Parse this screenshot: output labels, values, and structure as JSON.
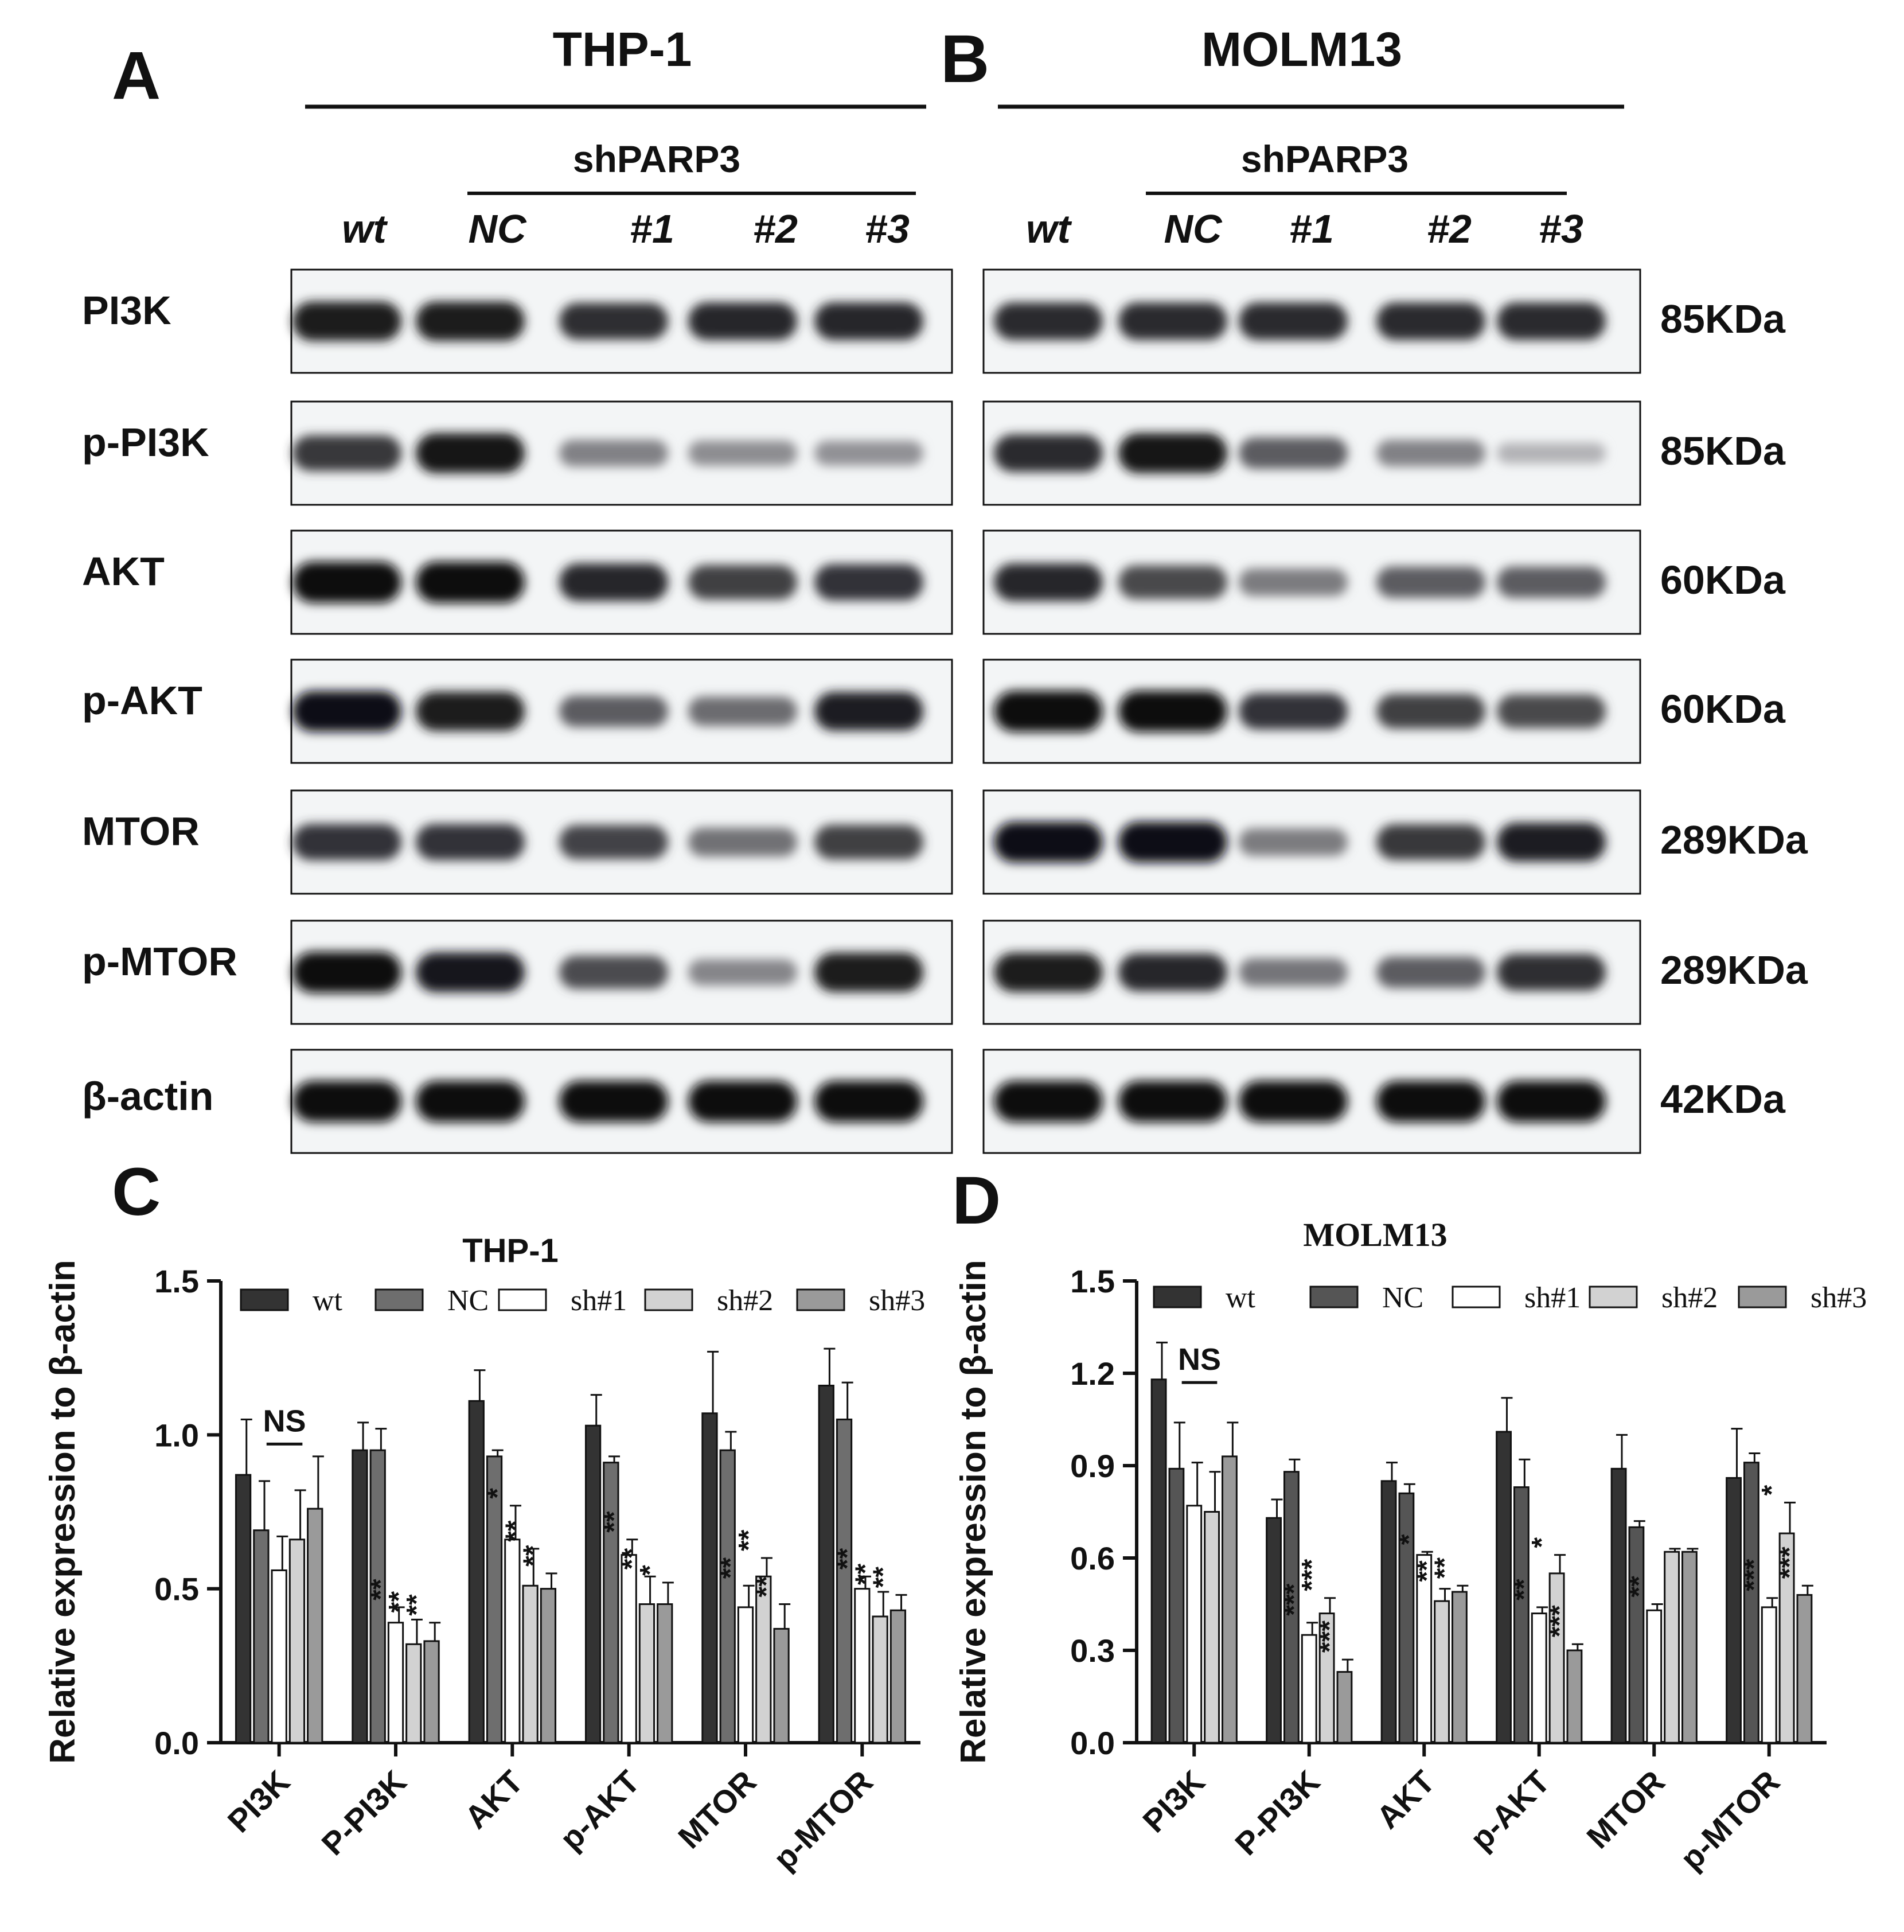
{
  "panels": {
    "A": {
      "letter": "A",
      "cell_line": "THP-1",
      "group_label": "shPARP3",
      "lanes": [
        "wt",
        "NC",
        "#1",
        "#2",
        "#3"
      ],
      "blots": [
        {
          "protein": "PI3K",
          "intensity": [
            0.92,
            0.92,
            0.82,
            0.86,
            0.86
          ]
        },
        {
          "protein": "p-PI3K",
          "intensity": [
            0.78,
            0.95,
            0.42,
            0.36,
            0.34
          ]
        },
        {
          "protein": "AKT",
          "intensity": [
            1.0,
            1.0,
            0.86,
            0.74,
            0.8
          ]
        },
        {
          "protein": "p-AKT",
          "intensity": [
            0.98,
            0.92,
            0.6,
            0.52,
            0.9
          ]
        },
        {
          "protein": "MTOR",
          "intensity": [
            0.8,
            0.8,
            0.72,
            0.5,
            0.74
          ]
        },
        {
          "protein": "p-MTOR",
          "intensity": [
            1.0,
            0.94,
            0.68,
            0.4,
            0.92
          ]
        },
        {
          "protein": "β-actin",
          "intensity": [
            1.0,
            1.0,
            1.0,
            1.0,
            1.0
          ]
        }
      ]
    },
    "B": {
      "letter": "B",
      "cell_line": "MOLM13",
      "group_label": "shPARP3",
      "lanes": [
        "wt",
        "NC",
        "#1",
        "#2",
        "#3"
      ],
      "blots": [
        {
          "protein": "PI3K",
          "size": "85KDa",
          "intensity": [
            0.85,
            0.85,
            0.85,
            0.85,
            0.85
          ]
        },
        {
          "protein": "p-PI3K",
          "size": "85KDa",
          "intensity": [
            0.85,
            0.95,
            0.6,
            0.42,
            0.18
          ]
        },
        {
          "protein": "AKT",
          "size": "60KDa",
          "intensity": [
            0.86,
            0.7,
            0.45,
            0.6,
            0.6
          ]
        },
        {
          "protein": "p-AKT",
          "size": "60KDa",
          "intensity": [
            1.0,
            1.0,
            0.8,
            0.74,
            0.7
          ]
        },
        {
          "protein": "MTOR",
          "size": "289KDa",
          "intensity": [
            0.98,
            0.98,
            0.45,
            0.78,
            0.9
          ]
        },
        {
          "protein": "p-MTOR",
          "size": "289KDa",
          "intensity": [
            0.92,
            0.86,
            0.48,
            0.6,
            0.82
          ]
        },
        {
          "protein": "β-actin",
          "size": "42KDa",
          "intensity": [
            1.0,
            1.0,
            1.0,
            1.0,
            1.0
          ]
        }
      ]
    }
  },
  "chart_data": [
    {
      "panel": "C",
      "type": "bar",
      "title": "THP-1",
      "ylabel": "Relative expression to β-actin",
      "xlabel": "",
      "ylim": [
        0,
        1.5
      ],
      "yticks": [
        "0.0",
        "0.5",
        "1.0",
        "1.5"
      ],
      "categories": [
        "PI3K",
        "P-PI3K",
        "AKT",
        "p-AKT",
        "MTOR",
        "p-MTOR"
      ],
      "legend_position": "top",
      "series": [
        {
          "name": "wt",
          "color": "#333333",
          "values": [
            0.87,
            0.95,
            1.11,
            1.03,
            1.07,
            1.16
          ],
          "errors": [
            0.18,
            0.09,
            0.1,
            0.1,
            0.2,
            0.12
          ]
        },
        {
          "name": "NC",
          "color": "#6e6e6e",
          "values": [
            0.69,
            0.95,
            0.93,
            0.91,
            0.95,
            1.05
          ],
          "errors": [
            0.16,
            0.07,
            0.02,
            0.02,
            0.06,
            0.12
          ]
        },
        {
          "name": "sh#1",
          "color": "#ffffff",
          "values": [
            0.56,
            0.39,
            0.66,
            0.61,
            0.44,
            0.5
          ],
          "errors": [
            0.11,
            0.05,
            0.11,
            0.05,
            0.07,
            0.04
          ]
        },
        {
          "name": "sh#2",
          "color": "#d2d2d2",
          "values": [
            0.66,
            0.32,
            0.51,
            0.45,
            0.54,
            0.41
          ],
          "errors": [
            0.16,
            0.08,
            0.12,
            0.09,
            0.06,
            0.08
          ]
        },
        {
          "name": "sh#3",
          "color": "#9a9a9a",
          "values": [
            0.76,
            0.33,
            0.5,
            0.45,
            0.37,
            0.43
          ],
          "errors": [
            0.17,
            0.06,
            0.05,
            0.07,
            0.08,
            0.05
          ]
        }
      ],
      "significance": [
        [
          "",
          "",
          "",
          "",
          ""
        ],
        [
          "",
          "",
          "**",
          "**",
          "**"
        ],
        [
          "",
          "",
          "*",
          "**",
          "**"
        ],
        [
          "",
          "",
          "**",
          "**",
          "*"
        ],
        [
          "",
          "",
          "**",
          "**",
          "**"
        ],
        [
          "",
          "",
          "**",
          "**",
          "**"
        ]
      ],
      "ns_label": "NS"
    },
    {
      "panel": "D",
      "type": "bar",
      "title": "MOLM13",
      "ylabel": "Relative expression to β-actin",
      "xlabel": "",
      "ylim": [
        0,
        1.5
      ],
      "yticks": [
        "0.0",
        "0.3",
        "0.6",
        "0.9",
        "1.2",
        "1.5"
      ],
      "categories": [
        "PI3K",
        "P-PI3K",
        "AKT",
        "p-AKT",
        "MTOR",
        "p-MTOR"
      ],
      "legend_position": "top",
      "series": [
        {
          "name": "wt",
          "color": "#333333",
          "values": [
            1.18,
            0.73,
            0.85,
            1.01,
            0.89,
            0.86
          ],
          "errors": [
            0.12,
            0.06,
            0.06,
            0.11,
            0.11,
            0.16
          ]
        },
        {
          "name": "NC",
          "color": "#555555",
          "values": [
            0.89,
            0.88,
            0.81,
            0.83,
            0.7,
            0.91
          ],
          "errors": [
            0.15,
            0.04,
            0.03,
            0.09,
            0.02,
            0.03
          ]
        },
        {
          "name": "sh#1",
          "color": "#ffffff",
          "values": [
            0.77,
            0.35,
            0.61,
            0.42,
            0.43,
            0.44
          ],
          "errors": [
            0.14,
            0.04,
            0.01,
            0.02,
            0.02,
            0.03
          ]
        },
        {
          "name": "sh#2",
          "color": "#d2d2d2",
          "values": [
            0.75,
            0.42,
            0.46,
            0.55,
            0.62,
            0.68
          ],
          "errors": [
            0.13,
            0.05,
            0.04,
            0.06,
            0.01,
            0.1
          ]
        },
        {
          "name": "sh#3",
          "color": "#9a9a9a",
          "values": [
            0.93,
            0.23,
            0.49,
            0.3,
            0.62,
            0.48
          ],
          "errors": [
            0.11,
            0.04,
            0.02,
            0.02,
            0.01,
            0.03
          ]
        }
      ],
      "significance": [
        [
          "",
          "",
          "",
          "",
          ""
        ],
        [
          "",
          "",
          "***",
          "***",
          "***"
        ],
        [
          "",
          "",
          "*",
          "**",
          "**"
        ],
        [
          "",
          "",
          "**",
          "*",
          "***"
        ],
        [
          "",
          "",
          "**",
          "",
          ""
        ],
        [
          "",
          "",
          "***",
          "*",
          "***"
        ]
      ],
      "ns_label": "NS"
    }
  ]
}
